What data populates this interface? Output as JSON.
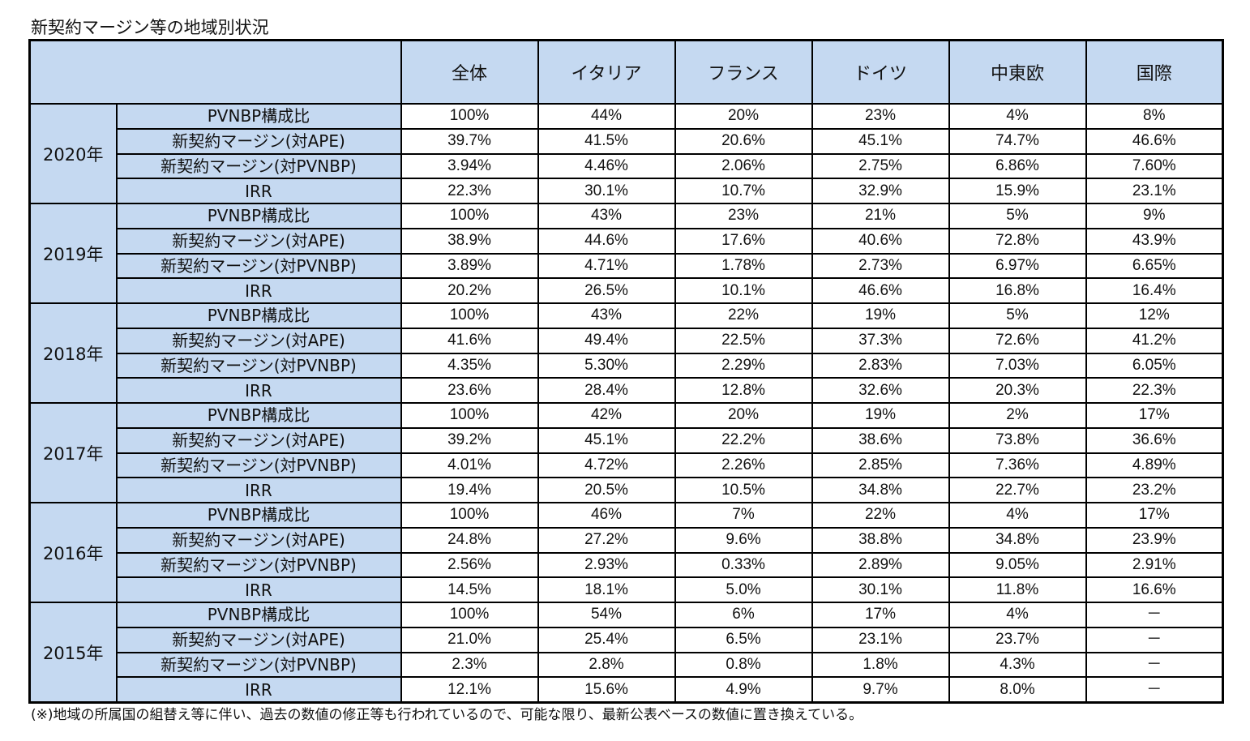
{
  "title": "新契約マージン等の地域別状況",
  "table": {
    "columns": [
      "全体",
      "イタリア",
      "フランス",
      "ドイツ",
      "中東欧",
      "国際"
    ],
    "metrics": [
      "PVNBP構成比",
      "新契約マージン(対APE)",
      "新契約マージン(対PVNBP)",
      "IRR"
    ],
    "years": [
      {
        "year": "2020年",
        "rows": [
          [
            "100%",
            "44%",
            "20%",
            "23%",
            "4%",
            "8%"
          ],
          [
            "39.7%",
            "41.5%",
            "20.6%",
            "45.1%",
            "74.7%",
            "46.6%"
          ],
          [
            "3.94%",
            "4.46%",
            "2.06%",
            "2.75%",
            "6.86%",
            "7.60%"
          ],
          [
            "22.3%",
            "30.1%",
            "10.7%",
            "32.9%",
            "15.9%",
            "23.1%"
          ]
        ]
      },
      {
        "year": "2019年",
        "rows": [
          [
            "100%",
            "43%",
            "23%",
            "21%",
            "5%",
            "9%"
          ],
          [
            "38.9%",
            "44.6%",
            "17.6%",
            "40.6%",
            "72.8%",
            "43.9%"
          ],
          [
            "3.89%",
            "4.71%",
            "1.78%",
            "2.73%",
            "6.97%",
            "6.65%"
          ],
          [
            "20.2%",
            "26.5%",
            "10.1%",
            "46.6%",
            "16.8%",
            "16.4%"
          ]
        ]
      },
      {
        "year": "2018年",
        "rows": [
          [
            "100%",
            "43%",
            "22%",
            "19%",
            "5%",
            "12%"
          ],
          [
            "41.6%",
            "49.4%",
            "22.5%",
            "37.3%",
            "72.6%",
            "41.2%"
          ],
          [
            "4.35%",
            "5.30%",
            "2.29%",
            "2.83%",
            "7.03%",
            "6.05%"
          ],
          [
            "23.6%",
            "28.4%",
            "12.8%",
            "32.6%",
            "20.3%",
            "22.3%"
          ]
        ]
      },
      {
        "year": "2017年",
        "rows": [
          [
            "100%",
            "42%",
            "20%",
            "19%",
            "2%",
            "17%"
          ],
          [
            "39.2%",
            "45.1%",
            "22.2%",
            "38.6%",
            "73.8%",
            "36.6%"
          ],
          [
            "4.01%",
            "4.72%",
            "2.26%",
            "2.85%",
            "7.36%",
            "4.89%"
          ],
          [
            "19.4%",
            "20.5%",
            "10.5%",
            "34.8%",
            "22.7%",
            "23.2%"
          ]
        ]
      },
      {
        "year": "2016年",
        "rows": [
          [
            "100%",
            "46%",
            "7%",
            "22%",
            "4%",
            "17%"
          ],
          [
            "24.8%",
            "27.2%",
            "9.6%",
            "38.8%",
            "34.8%",
            "23.9%"
          ],
          [
            "2.56%",
            "2.93%",
            "0.33%",
            "2.89%",
            "9.05%",
            "2.91%"
          ],
          [
            "14.5%",
            "18.1%",
            "5.0%",
            "30.1%",
            "11.8%",
            "16.6%"
          ]
        ]
      },
      {
        "year": "2015年",
        "rows": [
          [
            "100%",
            "54%",
            "6%",
            "17%",
            "4%",
            "－"
          ],
          [
            "21.0%",
            "25.4%",
            "6.5%",
            "23.1%",
            "23.7%",
            "－"
          ],
          [
            "2.3%",
            "2.8%",
            "0.8%",
            "1.8%",
            "4.3%",
            "－"
          ],
          [
            "12.1%",
            "15.6%",
            "4.9%",
            "9.7%",
            "8.0%",
            "－"
          ]
        ]
      }
    ]
  },
  "footnote": "(※)地域の所属国の組替え等に伴い、過去の数値の修正等も行われているので、可能な限り、最新公表ベースの数値に置き換えている。",
  "colors": {
    "header_fill": "#c5d9f1",
    "border": "#000000",
    "cell_fill": "#ffffff"
  }
}
